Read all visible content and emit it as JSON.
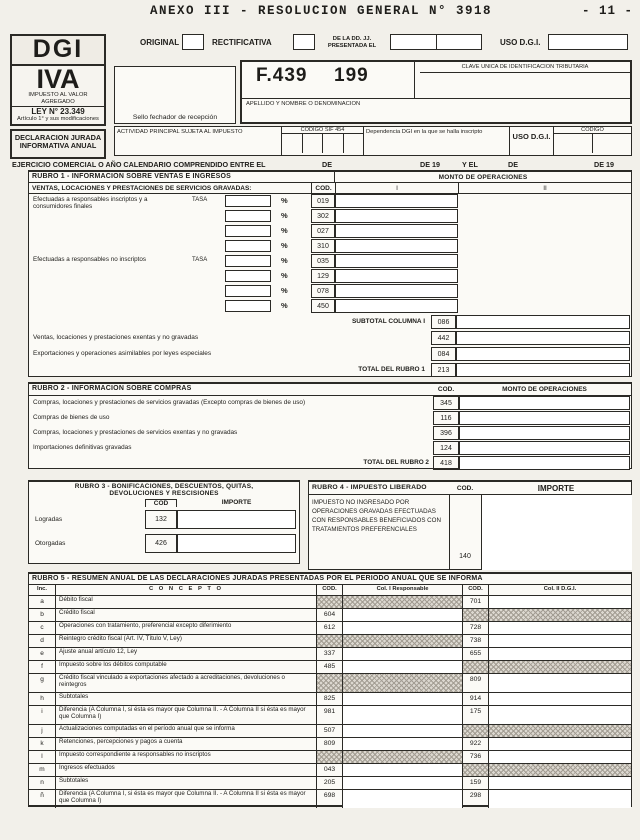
{
  "colors": {
    "paper": "#f2f0ea",
    "ink": "#1e1d1a",
    "border": "#2b2a26",
    "cell": "#fbfaf6",
    "hatch": "#a39d93"
  },
  "page": {
    "title": "ANEXO III - RESOLUCION GENERAL N° 3918",
    "page_number": "- 11 -"
  },
  "header": {
    "original_label": "ORIGINAL",
    "rectificativa_label": "RECTIFICATIVA",
    "ddjj_line1": "DE LA DD. JJ.",
    "ddjj_line2": "PRESENTADA EL",
    "uso_dgi_label": "USO D.G.I.",
    "logo": "DGI",
    "tax": "IVA",
    "tax_subtitle": "IMPUESTO AL VALOR AGREGADO",
    "law": "LEY N° 23.349",
    "law_detail": "Artículo 1° y sus modificaciones",
    "declaration": "DECLARACION JURADA INFORMATIVA ANUAL",
    "stamp_label": "Sello fechador de recepción",
    "form_number": "F.439",
    "form_period": "199",
    "cuit_label": "CLAVE UNICA DE IDENTIFICACION TRIBUTARIA",
    "name_label": "APELLIDO Y NOMBRE O DENOMINACION",
    "activity_label": "ACTIVIDAD PRINCIPAL SUJETA AL IMPUESTO",
    "sif_label": "CODIGO SIF 454",
    "dependency_label": "Dependencia DGI en la que se halla inscripto",
    "uso_dgi_box_label": "USO D.G.I.",
    "codigo_label": "CODIGO"
  },
  "period": {
    "text1": "EJERCICIO COMERCIAL O AÑO CALENDARIO COMPRENDIDO  ENTRE EL",
    "de1": "DE",
    "de19a": "DE 19",
    "yel": "Y EL",
    "de2": "DE",
    "de19b": "DE 19"
  },
  "rubro1": {
    "title": "RUBRO 1 - INFORMACION SOBRE VENTAS E INGRESOS",
    "monto_header": "MONTO DE OPERACIONES",
    "subtitle": "VENTAS, LOCACIONES Y PRESTACIONES DE SERVICIOS GRAVADAS:",
    "cod_label": "COD.",
    "col1_label": "I",
    "col2_label": "II",
    "tasa_label": "TASA",
    "percent": "%",
    "tasa_rows": [
      {
        "code": "019",
        "label": "Efectuadas a responsables inscriptos y a consumidores finales",
        "tasa": true
      },
      {
        "code": "302"
      },
      {
        "code": "027"
      },
      {
        "code": "310"
      },
      {
        "code": "035",
        "label": "Efectuadas a responsables no inscriptos",
        "tasa": true
      },
      {
        "code": "129"
      },
      {
        "code": "078"
      },
      {
        "code": "450"
      }
    ],
    "summary_rows": [
      {
        "label": "SUBTOTAL COLUMNA I",
        "code": "086",
        "align": "right"
      },
      {
        "label": "Ventas, locaciones y prestaciones exentas y no gravadas",
        "code": "442",
        "align": "left"
      },
      {
        "label": "Exportaciones y operaciones asimilables por leyes especiales",
        "code": "084",
        "align": "left"
      },
      {
        "label": "TOTAL DEL RUBRO 1",
        "code": "213",
        "align": "right"
      }
    ]
  },
  "rubro2": {
    "title": "RUBRO 2 - INFORMACION SOBRE COMPRAS",
    "cod_label": "COD.",
    "monto_label": "MONTO DE OPERACIONES",
    "rows": [
      {
        "label": "Compras, locaciones y prestaciones de servicios gravadas (Excepto compras de bienes de uso)",
        "code": "345"
      },
      {
        "label": "Compras de bienes de uso",
        "code": "116"
      },
      {
        "label": "Compras, locaciones y prestaciones de servicios exentas y no gravadas",
        "code": "396"
      },
      {
        "label": "Importaciones definitivas gravadas",
        "code": "124"
      },
      {
        "label": "TOTAL DEL RUBRO 2",
        "code": "418",
        "total": true
      }
    ]
  },
  "rubro3": {
    "title_line1": "RUBRO 3 - BONIFICACIONES, DESCUENTOS, QUITAS,",
    "title_line2": "DEVOLUCIONES Y RESCISIONES",
    "cod_label": "COD",
    "importe_label": "IMPORTE",
    "rows": [
      {
        "label": "Logradas",
        "code": "132"
      },
      {
        "label": "Otorgadas",
        "code": "426"
      }
    ]
  },
  "rubro4": {
    "title": "RUBRO 4 - IMPUESTO LIBERADO",
    "cod_label": "COD.",
    "importe_label": "IMPORTE",
    "body": "IMPUESTO NO INGRESADO POR OPERACIONES GRAVADAS EFECTUADAS CON RESPONSABLES BENEFICIADOS CON TRATAMIENTOS PREFERENCIALES",
    "code": "140"
  },
  "rubro5": {
    "title": "RUBRO 5 - RESUMEN ANUAL DE LAS DECLARACIONES JURADAS PRESENTADAS POR EL PERIODO ANUAL QUE SE INFORMA",
    "headers": {
      "inc": "Inc.",
      "concepto": "C O N C E P T O",
      "cod1": "COD.",
      "col1": "Col. I Responsable",
      "cod2": "COD.",
      "col2": "Col. II D.G.I."
    },
    "rows": [
      {
        "inc": "a",
        "text": "Débito fiscal",
        "shade": "left",
        "cod2": "701"
      },
      {
        "inc": "b",
        "text": "Crédito fiscal",
        "cod1": "604",
        "shade": "right"
      },
      {
        "inc": "c",
        "text": "Operaciones con tratamiento, preferencial excepto diferimiento",
        "cod1": "612",
        "cod2": "728"
      },
      {
        "inc": "d",
        "text": "Reintegro crédito fiscal (Art. IV, Título V, Ley)",
        "shade": "left",
        "cod2": "738"
      },
      {
        "inc": "e",
        "text": "Ajuste anual artículo 12, Ley",
        "cod1": "337",
        "cod2": "655"
      },
      {
        "inc": "f",
        "text": "Impuesto sobre los débitos computable",
        "cod1": "485",
        "shade": "right"
      },
      {
        "inc": "g",
        "text": "Crédito fiscal vinculado a exportaciones afectado a acreditaciones, devoluciones o reintegros",
        "shade": "left",
        "cod2": "809",
        "tall": true
      },
      {
        "inc": "h",
        "text": "Subtotales",
        "cod1": "825",
        "cod2": "914"
      },
      {
        "inc": "i",
        "text": "Diferencia (A Columna I, si ésta es mayor que Columna II. - A Columna II si ésta es mayor que Columna I)",
        "cod1": "981",
        "cod2": "175",
        "tall": true
      },
      {
        "inc": "j",
        "text": "Actualizaciones computadas en el período anual que se informa",
        "cod1": "507",
        "shade": "right"
      },
      {
        "inc": "k",
        "text": "Retenciones, percepciones y pagos a cuenta",
        "cod1": "809",
        "cod2": "922"
      },
      {
        "inc": "l",
        "text": "Impuesto correspondiente a responsables no inscriptos",
        "shade": "left",
        "cod2": "736"
      },
      {
        "inc": "m",
        "text": "Ingresos efectuados",
        "cod1": "043",
        "shade": "right"
      },
      {
        "inc": "n",
        "text": "Subtotales",
        "cod1": "205",
        "cod2": "159"
      },
      {
        "inc": "ñ",
        "text": "Diferencia (A Columna I, si ésta es mayor que Columna II. - A Columna II si ésta es mayor que Columna I)",
        "cod1": "698",
        "cod2": "298",
        "tall": true
      }
    ]
  }
}
